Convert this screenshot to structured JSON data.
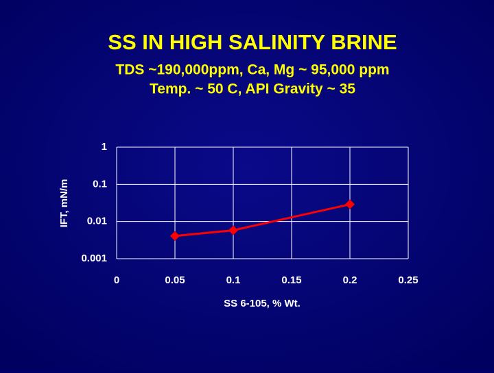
{
  "chart_data": {
    "type": "line",
    "title": "SS IN HIGH SALINITY BRINE",
    "subtitle": [
      "TDS ~190,000ppm, Ca, Mg ~ 95,000 ppm",
      "Temp. ~ 50 C, API Gravity ~ 35"
    ],
    "x_label": "SS 6-105, % Wt.",
    "y_label": "IFT, mN/m",
    "x": [
      0.05,
      0.1,
      0.2
    ],
    "series": [
      {
        "color": "#ff0000",
        "values": [
          0.0041,
          0.0058,
          0.029
        ]
      }
    ],
    "xlim": [
      0,
      0.25
    ],
    "xticks": [
      0,
      0.05,
      0.1,
      0.15,
      0.2,
      0.25
    ],
    "ylim": [
      0.001,
      1
    ],
    "yticks": [
      0.001,
      0.01,
      0.1,
      1
    ],
    "y_scale": "log",
    "grid": true
  }
}
